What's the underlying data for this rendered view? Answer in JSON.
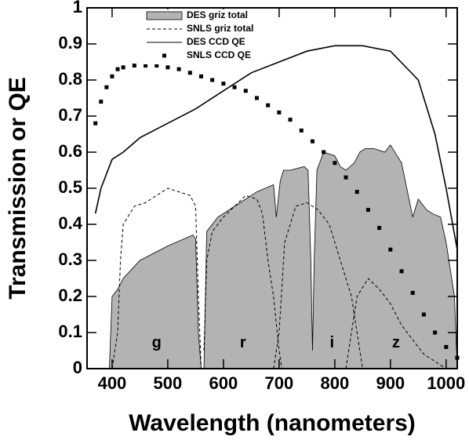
{
  "chart_data": {
    "type": "line",
    "xlabel": "Wavelength (nanometers)",
    "ylabel": "Transmission or QE",
    "xlim": [
      355,
      1020
    ],
    "ylim": [
      0,
      1
    ],
    "xticks": [
      400,
      500,
      600,
      700,
      800,
      900,
      1000
    ],
    "yticks": [
      0,
      0.1,
      0.2,
      0.3,
      0.4,
      0.5,
      0.6,
      0.7,
      0.8,
      0.9,
      1
    ],
    "band_labels": [
      "g",
      "r",
      "i",
      "z"
    ],
    "legend": "top-center",
    "series": [
      {
        "name": "DES griz total",
        "kind": "area",
        "color": "#b3b3b3",
        "x": [
          395,
          400,
          410,
          420,
          450,
          500,
          530,
          545,
          550,
          555,
          560,
          562,
          565,
          570,
          590,
          620,
          660,
          690,
          695,
          702,
          708,
          720,
          745,
          752,
          757,
          760,
          763,
          768,
          780,
          800,
          810,
          820,
          835,
          845,
          855,
          870,
          890,
          900,
          920,
          940,
          950,
          965,
          975,
          990,
          1000,
          1015,
          1020
        ],
        "values": [
          0,
          0.2,
          0.22,
          0.25,
          0.3,
          0.34,
          0.36,
          0.37,
          0.36,
          0.1,
          0,
          null,
          0,
          0.38,
          0.42,
          0.45,
          0.49,
          0.51,
          0.42,
          0.52,
          0.55,
          0.55,
          0.56,
          0.55,
          0.3,
          0.05,
          0.3,
          0.55,
          0.6,
          0.59,
          0.56,
          0.55,
          0.57,
          0.6,
          0.61,
          0.61,
          0.6,
          0.62,
          0.57,
          0.42,
          0.47,
          0.44,
          0.43,
          0.42,
          0.35,
          0.2,
          0
        ]
      },
      {
        "name": "SNLS griz total",
        "kind": "dashed",
        "color": "#000000",
        "x": [
          400,
          410,
          415,
          420,
          440,
          460,
          480,
          500,
          520,
          540,
          550,
          555,
          560,
          562,
          565,
          570,
          580,
          600,
          640,
          660,
          670,
          680,
          690,
          700,
          705,
          706,
          690,
          700,
          710,
          730,
          750,
          770,
          790,
          810,
          830,
          840,
          850,
          851,
          820,
          830,
          840,
          860,
          880,
          900,
          920,
          940,
          960,
          980,
          1000
        ],
        "values": [
          0,
          0.1,
          0.3,
          0.4,
          0.45,
          0.46,
          0.48,
          0.5,
          0.49,
          0.48,
          0.45,
          0.2,
          0,
          null,
          0.05,
          0.3,
          0.38,
          0.42,
          0.48,
          0.47,
          0.43,
          0.3,
          0.2,
          0.05,
          0,
          null,
          0,
          0.1,
          0.35,
          0.45,
          0.46,
          0.44,
          0.4,
          0.3,
          0.2,
          0.1,
          0,
          null,
          0,
          0.1,
          0.2,
          0.25,
          0.22,
          0.18,
          0.12,
          0.08,
          0.04,
          0.02,
          0
        ]
      },
      {
        "name": "DES CCD QE",
        "kind": "line",
        "color": "#000000",
        "x": [
          370,
          380,
          400,
          420,
          450,
          500,
          550,
          600,
          650,
          700,
          750,
          800,
          850,
          900,
          950,
          980,
          1000,
          1020
        ],
        "values": [
          0.43,
          0.5,
          0.58,
          0.6,
          0.64,
          0.68,
          0.72,
          0.77,
          0.82,
          0.85,
          0.88,
          0.895,
          0.895,
          0.88,
          0.8,
          0.65,
          0.5,
          0.33
        ]
      },
      {
        "name": "SNLS CCD QE",
        "kind": "markers",
        "color": "#000000",
        "x": [
          370,
          380,
          390,
          400,
          410,
          420,
          440,
          460,
          480,
          500,
          520,
          540,
          560,
          580,
          600,
          620,
          640,
          660,
          680,
          700,
          720,
          740,
          760,
          780,
          800,
          820,
          840,
          860,
          880,
          900,
          920,
          940,
          960,
          980,
          1000,
          1020
        ],
        "values": [
          0.68,
          0.74,
          0.78,
          0.81,
          0.83,
          0.835,
          0.84,
          0.84,
          0.84,
          0.835,
          0.83,
          0.82,
          0.81,
          0.8,
          0.79,
          0.78,
          0.77,
          0.75,
          0.73,
          0.71,
          0.69,
          0.66,
          0.63,
          0.6,
          0.57,
          0.53,
          0.49,
          0.44,
          0.39,
          0.33,
          0.27,
          0.21,
          0.15,
          0.1,
          0.06,
          0.03
        ]
      }
    ]
  }
}
